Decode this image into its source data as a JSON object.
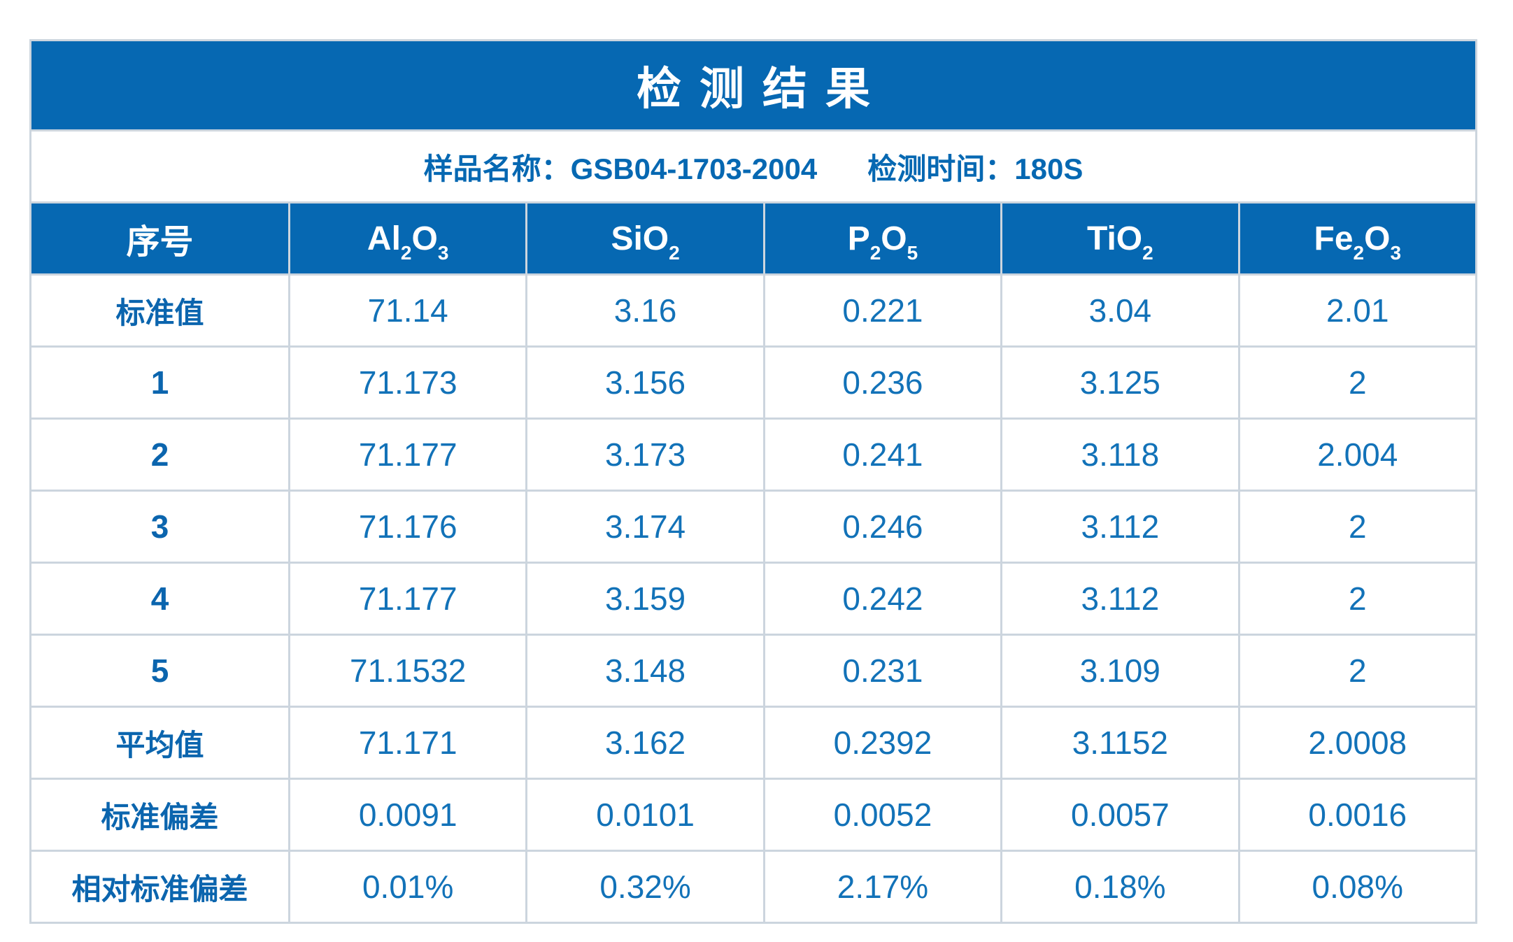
{
  "page": {
    "title": "检测结果"
  },
  "subtitle": {
    "sample_label": "样品名称：",
    "sample_value": "GSB04-1703-2004",
    "time_label": "检测时间：",
    "time_value": "180S"
  },
  "table": {
    "columns": [
      {
        "name": "index",
        "formula": [
          "序号"
        ]
      },
      {
        "name": "Al2O3",
        "formula": [
          "Al",
          "2",
          "O",
          "3"
        ]
      },
      {
        "name": "SiO2",
        "formula": [
          "SiO",
          "2"
        ]
      },
      {
        "name": "P2O5",
        "formula": [
          "P",
          "2",
          "O",
          "5"
        ]
      },
      {
        "name": "TiO2",
        "formula": [
          "TiO",
          "2"
        ]
      },
      {
        "name": "Fe2O3",
        "formula": [
          "Fe",
          "2",
          "O",
          "3"
        ]
      }
    ],
    "rows": [
      {
        "label": "标准值",
        "values": [
          "71.14",
          "3.16",
          "0.221",
          "3.04",
          "2.01"
        ]
      },
      {
        "label": "1",
        "values": [
          "71.173",
          "3.156",
          "0.236",
          "3.125",
          "2"
        ]
      },
      {
        "label": "2",
        "values": [
          "71.177",
          "3.173",
          "0.241",
          "3.118",
          "2.004"
        ]
      },
      {
        "label": "3",
        "values": [
          "71.176",
          "3.174",
          "0.246",
          "3.112",
          "2"
        ]
      },
      {
        "label": "4",
        "values": [
          "71.177",
          "3.159",
          "0.242",
          "3.112",
          "2"
        ]
      },
      {
        "label": "5",
        "values": [
          "71.1532",
          "3.148",
          "0.231",
          "3.109",
          "2"
        ]
      },
      {
        "label": "平均值",
        "values": [
          "71.171",
          "3.162",
          "0.2392",
          "3.1152",
          "2.0008"
        ]
      },
      {
        "label": "标准偏差",
        "values": [
          "0.0091",
          "0.0101",
          "0.0052",
          "0.0057",
          "0.0016"
        ]
      },
      {
        "label": "相对标准偏差",
        "values": [
          "0.01%",
          "0.32%",
          "2.17%",
          "0.18%",
          "0.08%"
        ]
      }
    ]
  },
  "colors": {
    "header_blue": "#0668b2",
    "value_blue": "#1272b8",
    "label_blue": "#0b65ae",
    "gridline": "#ccd5de",
    "title_text": "#ffffff"
  }
}
